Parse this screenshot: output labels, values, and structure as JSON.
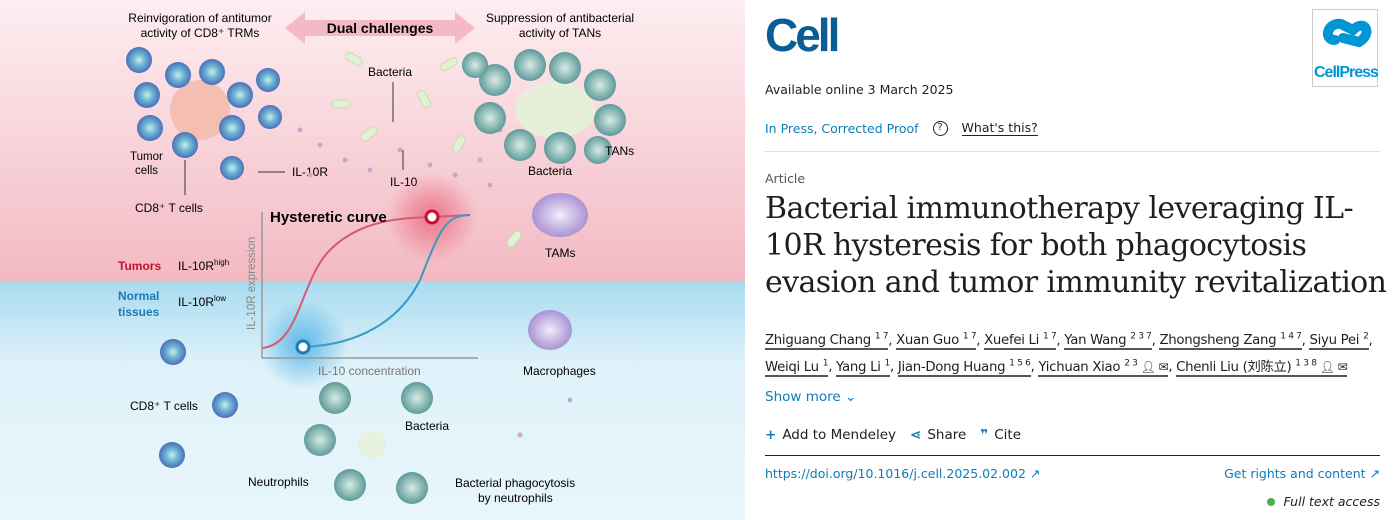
{
  "figure": {
    "colors": {
      "tumor_bg": "#f9dde2",
      "normal_bg": "#d7eef7",
      "red": "#c8102e",
      "blue": "#1b7bb5"
    },
    "labels": {
      "reinvig_1": "Reinvigoration of antitumor",
      "reinvig_2": "activity of CD8⁺ TRMs",
      "dual": "Dual challenges",
      "suppr_1": "Suppression of antibacterial",
      "suppr_2": "activity of TANs",
      "bacteria_top": "Bacteria",
      "tumor_cells_1": "Tumor",
      "tumor_cells_2": "cells",
      "il10r": "IL-10R",
      "il10": "IL-10",
      "cd8_top": "CD8⁺ T cells",
      "bacteria_tan": "Bacteria",
      "tans": "TANs",
      "tams": "TAMs",
      "hyst": "Hysteretic curve",
      "tumors": "Tumors",
      "il10r_high": "IL-10R",
      "high": "high",
      "normal_1": "Normal",
      "normal_2": "tissues",
      "il10r_low": "IL-10R",
      "low": "low",
      "yaxis": "IL-10R expression",
      "xaxis": "IL-10 concentration",
      "macrophages": "Macrophages",
      "cd8_bottom": "CD8⁺ T cells",
      "bacteria_bottom": "Bacteria",
      "neutrophils": "Neutrophils",
      "phago_1": "Bacterial phagocytosis",
      "phago_2": "by neutrophils"
    }
  },
  "article": {
    "journal": "Cell",
    "publisher": "CellPress",
    "available": "Available online 3 March 2025",
    "status": "In Press, Corrected Proof",
    "whats_this": "What's this?",
    "type": "Article",
    "title": "Bacterial immunotherapy leveraging IL-10R hysteresis for both phagocytosis evasion and tumor immunity revitalization",
    "authors": [
      {
        "name": "Zhiguang Chang",
        "sup": "1 7"
      },
      {
        "name": "Xuan Guo",
        "sup": "1 7"
      },
      {
        "name": "Xuefei Li",
        "sup": "1 7"
      },
      {
        "name": "Yan Wang",
        "sup": "2 3 7"
      },
      {
        "name": "Zhongsheng Zang",
        "sup": "1 4 7"
      },
      {
        "name": "Siyu Pei",
        "sup": "2"
      },
      {
        "name": "Weiqi Lu",
        "sup": "1"
      },
      {
        "name": "Yang Li",
        "sup": "1"
      },
      {
        "name": "Jian-Dong Huang",
        "sup": "1 5 6"
      },
      {
        "name": "Yichuan Xiao",
        "sup": "2 3",
        "icons": true
      },
      {
        "name": "Chenli Liu (刘陈立)",
        "sup": "1 3 8",
        "icons": true
      }
    ],
    "show_more": "Show more",
    "actions": {
      "mendeley": "Add to Mendeley",
      "share": "Share",
      "cite": "Cite"
    },
    "doi": "https://doi.org/10.1016/j.cell.2025.02.002",
    "rights": "Get rights and content",
    "access": "Full text access",
    "access_color": "#4caf50"
  }
}
